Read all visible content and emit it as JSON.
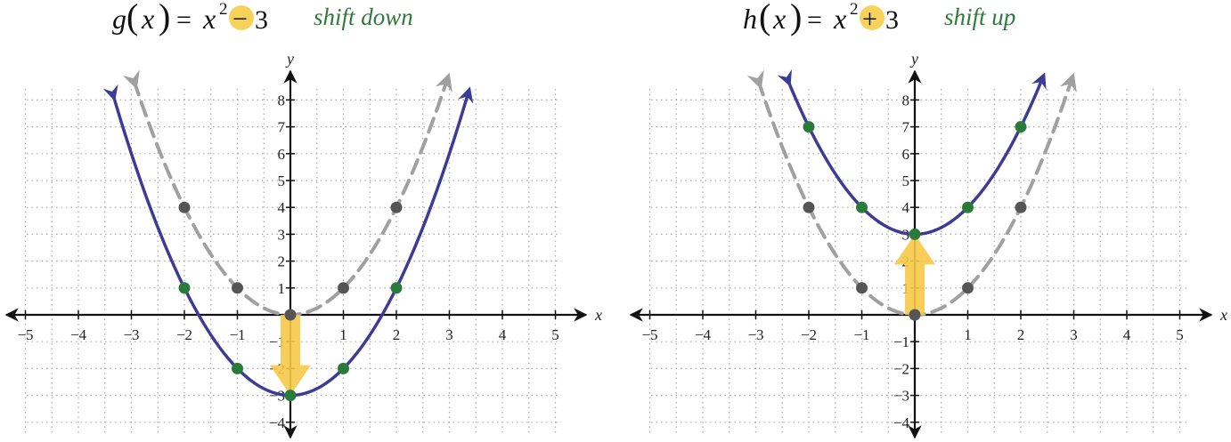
{
  "colors": {
    "transformed": "#3c3c96",
    "original": "#a0a0a0",
    "point_transformed": "#2a7a3a",
    "point_original": "#555555",
    "arrow": "#f7c948",
    "highlight": "#f7d25a",
    "caption": "#2f7a3c"
  },
  "chart_data": [
    {
      "type": "line",
      "title": {
        "func": "g",
        "var": "x",
        "equals": "=",
        "base": "x",
        "exp": "2",
        "op": "−",
        "const": "3"
      },
      "caption": "shift down",
      "xlabel": "x",
      "ylabel": "y",
      "xlim": [
        -5.5,
        5.6
      ],
      "ylim": [
        -4.3,
        8.4
      ],
      "xticks": [
        "−5",
        "−4",
        "−3",
        "−2",
        "−1",
        "1",
        "2",
        "3",
        "4",
        "5"
      ],
      "yticks": [
        "−4",
        "−3",
        "−2",
        "−1",
        "1",
        "2",
        "3",
        "4",
        "5",
        "6",
        "7",
        "8"
      ],
      "grid": true,
      "shift": -3,
      "series": [
        {
          "role": "original",
          "style": "dashed",
          "formula": "x^2",
          "x_range": [
            -2.95,
            2.95
          ],
          "points": [
            [
              -2,
              4
            ],
            [
              -1,
              1
            ],
            [
              0,
              0
            ],
            [
              1,
              1
            ],
            [
              2,
              4
            ]
          ]
        },
        {
          "role": "transformed",
          "style": "solid",
          "formula": "x^2-3",
          "x_range": [
            -3.35,
            3.35
          ],
          "points": [
            [
              -2,
              1
            ],
            [
              -1,
              -2
            ],
            [
              0,
              -3
            ],
            [
              1,
              -2
            ],
            [
              2,
              1
            ]
          ]
        }
      ],
      "annotation": {
        "type": "arrow",
        "direction": "down",
        "from_y": 0,
        "to_y": -3
      }
    },
    {
      "type": "line",
      "title": {
        "func": "h",
        "var": "x",
        "equals": "=",
        "base": "x",
        "exp": "2",
        "op": "+",
        "const": "3"
      },
      "caption": "shift up",
      "xlabel": "x",
      "ylabel": "y",
      "xlim": [
        -5.5,
        5.6
      ],
      "ylim": [
        -4.3,
        8.4
      ],
      "xticks": [
        "−5",
        "−4",
        "−3",
        "−2",
        "−1",
        "1",
        "2",
        "3",
        "4",
        "5"
      ],
      "yticks": [
        "−4",
        "−3",
        "−2",
        "−1",
        "1",
        "2",
        "3",
        "4",
        "5",
        "6",
        "7",
        "8"
      ],
      "grid": true,
      "shift": 3,
      "series": [
        {
          "role": "original",
          "style": "dashed",
          "formula": "x^2",
          "x_range": [
            -2.95,
            2.95
          ],
          "points": [
            [
              -2,
              4
            ],
            [
              -1,
              1
            ],
            [
              0,
              0
            ],
            [
              1,
              1
            ],
            [
              2,
              4
            ]
          ]
        },
        {
          "role": "transformed",
          "style": "solid",
          "formula": "x^2+3",
          "x_range": [
            -2.4,
            2.4
          ],
          "points": [
            [
              -2,
              7
            ],
            [
              -1,
              4
            ],
            [
              0,
              3
            ],
            [
              1,
              4
            ],
            [
              2,
              7
            ]
          ]
        }
      ],
      "annotation": {
        "type": "arrow",
        "direction": "up",
        "from_y": 0,
        "to_y": 3
      }
    }
  ]
}
